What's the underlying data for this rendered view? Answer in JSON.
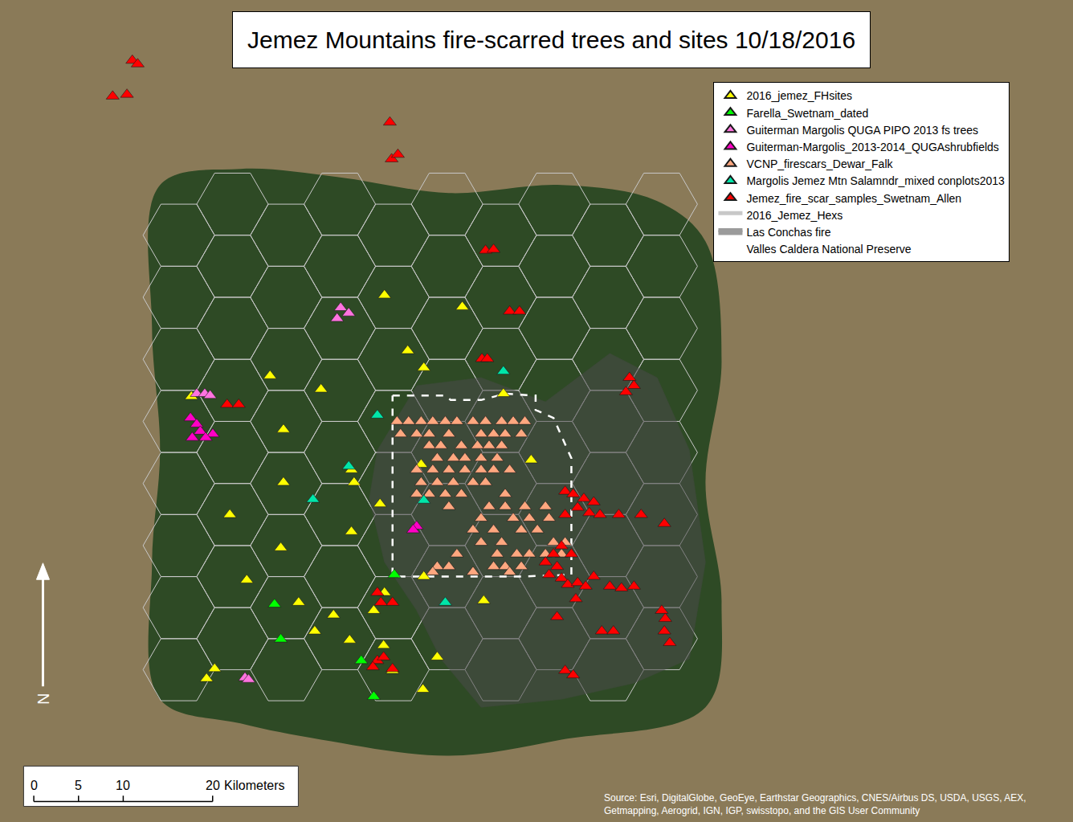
{
  "chart_data": {
    "type": "map",
    "title": "Jemez Mountains fire-scarred trees and sites 10/18/2016",
    "xlim": [
      0,
      120
    ],
    "ylim": [
      0,
      91.75
    ],
    "tick_labels": false,
    "legend": "upper right",
    "basemap": {
      "color": "#8a7a58",
      "forest": {
        "color": "#2e4a25",
        "x": [
          17.9,
          26.9,
          37.7,
          50.2,
          62.8,
          73.5,
          78.9,
          80.7,
          78.9,
          80.7,
          78.9,
          62.8,
          50.2,
          35.9,
          26.9,
          17.9,
          17.0,
          17.9,
          17.0
        ],
        "y": [
          71.1,
          72.9,
          72.0,
          70.2,
          71.1,
          69.3,
          64.8,
          51.4,
          37.9,
          24.5,
          12.8,
          9.2,
          7.4,
          9.2,
          11.0,
          13.7,
          28.9,
          41.5,
          55.2
        ]
      }
    },
    "series": [
      {
        "name": "2016_jemez_FHsites",
        "type": "scatter",
        "marker": "triangle",
        "color": "#ffff00",
        "x": [
          43.0,
          51.7,
          45.6,
          47.4,
          56.3,
          30.2,
          35.9,
          31.7,
          39.3,
          39.6,
          31.7,
          42.5,
          25.7,
          39.3,
          31.4,
          27.6,
          47.4,
          33.4,
          41.8,
          43.0,
          54.1,
          47.1,
          59.4,
          35.2,
          37.3,
          39.1,
          42.9,
          48.9,
          43.9,
          47.3,
          24.0,
          23.1,
          21.4
        ],
        "y": [
          58.8,
          57.5,
          52.6,
          50.7,
          47.8,
          49.8,
          48.3,
          43.8,
          39.3,
          37.9,
          37.9,
          35.5,
          34.3,
          32.4,
          30.6,
          27.0,
          27.4,
          24.5,
          23.6,
          25.6,
          24.7,
          39.9,
          40.4,
          21.3,
          23.1,
          20.3,
          19.7,
          18.4,
          16.9,
          14.8,
          17.1,
          16.0,
          47.5
        ]
      },
      {
        "name": "Farella_Swetnam_dated",
        "type": "scatter",
        "marker": "triangle",
        "color": "#00ff00",
        "x": [
          44.1,
          30.7,
          31.4,
          40.4,
          41.8
        ],
        "y": [
          27.6,
          24.3,
          20.4,
          18.0,
          14.0
        ]
      },
      {
        "name": "Guiterman Margolis QUGA PIPO 2013 fs trees",
        "type": "scatter",
        "marker": "triangle",
        "color": "#ff73df",
        "x": [
          38.1,
          39.0,
          37.7,
          22.0,
          22.9,
          23.5,
          27.4,
          27.8
        ],
        "y": [
          57.4,
          56.8,
          56.2,
          47.8,
          47.8,
          47.6,
          16.1,
          15.9
        ]
      },
      {
        "name": "Guiterman-Margolis_2013-2014_QUGAshrubfields",
        "type": "scatter",
        "marker": "triangle",
        "color": "#ff00c5",
        "x": [
          21.3,
          22.0,
          22.4,
          21.5,
          23.8,
          23.0,
          46.6,
          46.2
        ],
        "y": [
          45.1,
          44.4,
          43.6,
          42.9,
          43.3,
          42.9,
          33.0,
          32.6
        ]
      },
      {
        "name": "VCNP_firescars_Dewar_Falk",
        "type": "scatter",
        "marker": "triangle",
        "color": "#ffa77f",
        "x": [
          44.4,
          45.7,
          47.1,
          48.4,
          49.8,
          51.1,
          52.9,
          54.3,
          56.1,
          57.4,
          58.7,
          44.8,
          46.6,
          48.0,
          50.2,
          53.8,
          55.2,
          56.5,
          58.3,
          48.0,
          49.3,
          51.6,
          53.4,
          54.7,
          56.1,
          48.9,
          50.7,
          52.0,
          53.8,
          55.6,
          46.6,
          48.4,
          50.2,
          52.0,
          53.8,
          55.2,
          57.0,
          47.1,
          48.9,
          50.7,
          52.9,
          54.3,
          46.6,
          48.0,
          49.8,
          51.6,
          56.5,
          50.2,
          54.7,
          56.5,
          58.7,
          61.0,
          53.8,
          57.4,
          59.2,
          61.4,
          52.9,
          55.2,
          58.3,
          60.1,
          53.8,
          56.1,
          61.9,
          63.2,
          51.1,
          55.6,
          57.8,
          59.2,
          61.0,
          62.8,
          48.9,
          50.2,
          55.2,
          56.5,
          58.3,
          48.4,
          52.9,
          57.0
        ],
        "y": [
          44.7,
          44.7,
          44.7,
          44.7,
          44.7,
          44.7,
          44.7,
          44.7,
          44.7,
          44.7,
          44.7,
          43.3,
          43.3,
          43.3,
          43.3,
          43.3,
          43.3,
          43.3,
          43.3,
          42.0,
          42.0,
          42.0,
          42.0,
          42.0,
          42.0,
          40.6,
          40.6,
          40.6,
          40.6,
          40.6,
          39.3,
          39.3,
          39.3,
          39.3,
          39.3,
          39.3,
          39.3,
          37.9,
          37.9,
          37.9,
          37.9,
          37.9,
          36.6,
          36.6,
          36.6,
          36.6,
          36.6,
          35.2,
          35.2,
          35.2,
          35.2,
          35.2,
          33.9,
          33.9,
          33.9,
          33.9,
          32.6,
          32.6,
          32.6,
          32.6,
          31.2,
          31.2,
          31.2,
          31.2,
          29.9,
          29.9,
          29.9,
          29.9,
          29.9,
          29.9,
          28.5,
          28.5,
          28.5,
          28.5,
          28.5,
          27.9,
          27.9,
          27.9
        ]
      },
      {
        "name": "Margolis Jemez Mtn Salamndr_mixed conplots2013",
        "type": "scatter",
        "marker": "triangle",
        "color": "#00e6a9",
        "x": [
          56.3,
          42.2,
          39.0,
          35.0,
          47.4,
          49.8
        ],
        "y": [
          50.3,
          45.4,
          39.7,
          36.0,
          35.9,
          24.5
        ]
      },
      {
        "name": "Jemez_fire_scar_samples_Swetnam_Allen",
        "type": "scatter",
        "marker": "triangle",
        "color": "#ff0000",
        "x": [
          12.6,
          14.2,
          14.8,
          15.4,
          43.6,
          43.8,
          44.5,
          54.3,
          55.2,
          57.0,
          58.1,
          53.9,
          54.5,
          70.4,
          70.9,
          70.0,
          25.4,
          26.7,
          63.2,
          64.1,
          65.3,
          66.4,
          64.6,
          65.9,
          63.2,
          67.1,
          69.2,
          71.7,
          74.3,
          62.8,
          63.9,
          61.9,
          61.0,
          62.3,
          61.4,
          62.8,
          63.5,
          64.6,
          66.4,
          68.2,
          69.5,
          70.9,
          64.4,
          65.5,
          62.3,
          74.0,
          74.4,
          74.3,
          74.9,
          67.3,
          68.6,
          63.2,
          64.1,
          42.2,
          43.9,
          42.6,
          42.2,
          42.9,
          43.9,
          41.7
        ],
        "y": [
          81.0,
          81.2,
          85.0,
          84.6,
          78.1,
          74.0,
          74.5,
          63.8,
          63.9,
          57.0,
          57.0,
          51.7,
          51.7,
          49.6,
          48.7,
          48.0,
          46.6,
          46.6,
          36.9,
          36.6,
          36.1,
          35.7,
          35.1,
          34.5,
          34.3,
          34.3,
          34.3,
          34.3,
          33.3,
          30.8,
          29.9,
          29.9,
          29.0,
          28.5,
          27.6,
          27.2,
          26.5,
          26.7,
          27.4,
          26.3,
          26.1,
          26.3,
          24.9,
          26.3,
          22.9,
          23.6,
          22.7,
          21.3,
          20.0,
          21.3,
          21.3,
          16.9,
          16.4,
          25.6,
          24.5,
          24.5,
          18.0,
          18.4,
          17.1,
          17.3
        ]
      },
      {
        "name": "2016_Jemez_Hexs",
        "type": "hexgrid",
        "color": "#c8c8c8",
        "origin": [
          20,
          17
        ],
        "radius": 4,
        "columns": 10,
        "rows": 8
      },
      {
        "name": "Las Conchas fire",
        "type": "area",
        "color": "#4a4a4a",
        "x": [
          42.2,
          46.6,
          53.8,
          61.0,
          68.2,
          73.5,
          77.1,
          78.9,
          77.1,
          70.9,
          62.8,
          53.8,
          49.3,
          46.6,
          43.0,
          41.3
        ],
        "y": [
          41.5,
          48.7,
          49.6,
          46.9,
          52.3,
          49.6,
          41.5,
          29.0,
          18.2,
          15.5,
          13.7,
          12.8,
          18.2,
          23.6,
          29.0,
          36.1
        ]
      },
      {
        "name": "Valles Caldera National Preserve",
        "type": "outline",
        "color": "#ffffff",
        "line_style": "dashed",
        "x": [
          43.9,
          49.8,
          50.4,
          53.8,
          56.5,
          59.9,
          59.9,
          61.9,
          63.9,
          63.9,
          58.3,
          43.9,
          43.9
        ],
        "y": [
          47.6,
          47.6,
          47.1,
          47.1,
          47.8,
          47.6,
          46.0,
          45.1,
          40.6,
          27.6,
          27.4,
          27.4,
          47.6
        ]
      }
    ],
    "scale_bar": {
      "ticks": [
        0,
        5,
        10,
        20
      ],
      "unit": "Kilometers"
    },
    "north_label": "N",
    "source": [
      "Source: Esri, DigitalGlobe, GeoEye, Earthstar Geographics, CNES/Airbus DS, USDA, USGS, AEX,",
      "Getmapping, Aerogrid, IGN, IGP, swisstopo, and the GIS User Community"
    ]
  }
}
